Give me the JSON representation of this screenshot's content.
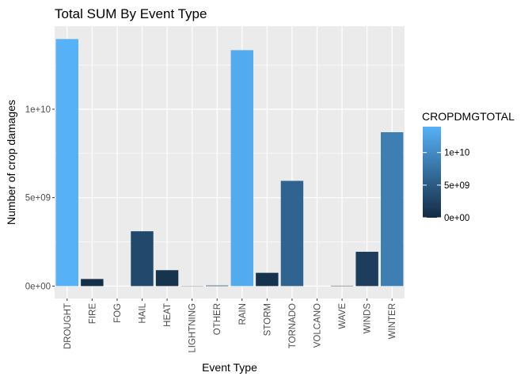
{
  "chart_data": {
    "type": "bar",
    "title": "Total SUM By Event Type",
    "xlabel": "Event Type",
    "ylabel": "Number of crop damages",
    "categories": [
      "DROUGHT",
      "FIRE",
      "FOG",
      "HAIL",
      "HEAT",
      "LIGHTNING",
      "OTHER",
      "RAIN",
      "STORM",
      "TORNADO",
      "VOLCANO",
      "WAVE",
      "WINDS",
      "WINTER"
    ],
    "values": [
      13970000000,
      400000000,
      0,
      3100000000,
      900000000,
      12000000,
      30000000,
      13340000000,
      750000000,
      5950000000,
      500000,
      20000000,
      1940000000,
      8700000000
    ],
    "ylim": [
      -700000000,
      14700000000
    ],
    "yticks": [
      0,
      5000000000,
      10000000000
    ],
    "ytick_labels": [
      "0e+00",
      "5e+09",
      "1e+10"
    ],
    "grid": true,
    "legend": {
      "title": "CROPDMGTOTAL",
      "position": "right",
      "labels": [
        "1e+10",
        "5e+09",
        "0e+00"
      ],
      "color_low": "#132B43",
      "color_high": "#56B1F7"
    },
    "panel_color": "#EBEBEB",
    "grid_color": "#FFFFFF"
  }
}
